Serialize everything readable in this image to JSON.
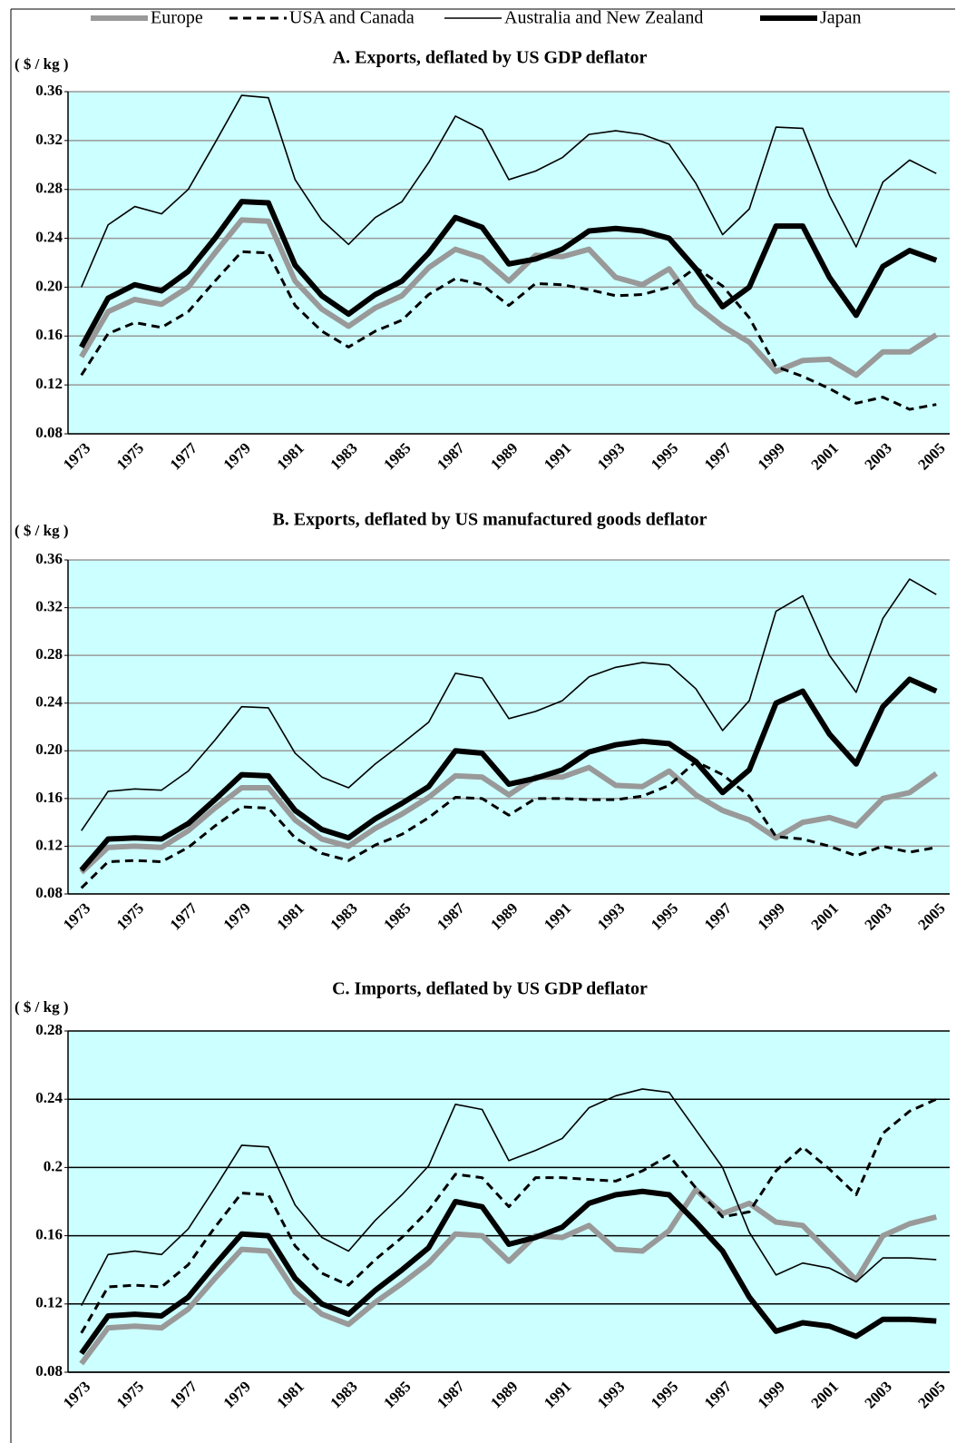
{
  "chart_data": [
    {
      "type": "line",
      "title": "A.  Exports, deflated by US GDP deflator",
      "y_label": "( $ / kg )",
      "categories": [
        "1973",
        null,
        "1975",
        null,
        "1977",
        null,
        "1979",
        null,
        "1981",
        null,
        "1983",
        null,
        "1985",
        null,
        "1987",
        null,
        "1989",
        null,
        "1991",
        null,
        "1993",
        null,
        "1995",
        null,
        "1997",
        null,
        "1999",
        null,
        "2001",
        null,
        "2003",
        null,
        "2005"
      ],
      "ylim": [
        0.08,
        0.36
      ],
      "yticks": [
        0.08,
        0.12,
        0.16,
        {
          "value": 0.2,
          "label": "0.20"
        },
        0.24,
        0.28,
        0.32,
        0.36
      ],
      "grid": true,
      "grid_color": "#999999",
      "plot_background": "#ccffff",
      "series": [
        {
          "name": "Europe",
          "color": "#999999",
          "style": "thick",
          "values": [
            0.143,
            0.18,
            0.19,
            0.186,
            0.2,
            0.228,
            0.255,
            0.254,
            0.205,
            0.182,
            0.168,
            0.183,
            0.193,
            0.216,
            0.231,
            0.224,
            0.205,
            0.226,
            0.225,
            0.231,
            0.208,
            0.202,
            0.215,
            0.185,
            0.168,
            0.155,
            0.131,
            0.14,
            0.141,
            0.128,
            0.147,
            0.147,
            0.161
          ]
        },
        {
          "name": "USA and Canada",
          "color": "#000000",
          "style": "dashed",
          "values": [
            0.128,
            0.162,
            0.171,
            0.167,
            0.18,
            0.205,
            0.229,
            0.228,
            0.185,
            0.164,
            0.151,
            0.164,
            0.173,
            0.194,
            0.207,
            0.202,
            0.185,
            0.203,
            0.202,
            0.198,
            0.193,
            0.194,
            0.2,
            0.216,
            0.201,
            0.175,
            0.135,
            0.127,
            0.117,
            0.105,
            0.11,
            0.1,
            0.104
          ]
        },
        {
          "name": "Australia and New Zealand",
          "color": "#000000",
          "style": "thin",
          "values": [
            0.2,
            0.251,
            0.266,
            0.26,
            0.28,
            0.318,
            0.357,
            0.355,
            0.288,
            0.255,
            0.235,
            0.257,
            0.27,
            0.302,
            0.34,
            0.329,
            0.288,
            0.295,
            0.306,
            0.325,
            0.328,
            0.325,
            0.317,
            0.285,
            0.243,
            0.264,
            0.331,
            0.33,
            0.275,
            0.233,
            0.286,
            0.304,
            0.293
          ]
        },
        {
          "name": "Japan",
          "color": "#000000",
          "style": "thick",
          "values": [
            0.151,
            0.191,
            0.202,
            0.197,
            0.213,
            0.24,
            0.27,
            0.269,
            0.218,
            0.193,
            0.178,
            0.194,
            0.205,
            0.228,
            0.257,
            0.249,
            0.219,
            0.223,
            0.231,
            0.246,
            0.248,
            0.246,
            0.24,
            0.215,
            0.184,
            0.2,
            0.25,
            0.25,
            0.208,
            0.177,
            0.217,
            0.23,
            0.222
          ]
        }
      ]
    },
    {
      "type": "line",
      "title": "B. Exports, deflated by US manufactured goods deflator",
      "y_label": "( $ / kg )",
      "categories": [
        "1973",
        null,
        "1975",
        null,
        "1977",
        null,
        "1979",
        null,
        "1981",
        null,
        "1983",
        null,
        "1985",
        null,
        "1987",
        null,
        "1989",
        null,
        "1991",
        null,
        "1993",
        null,
        "1995",
        null,
        "1997",
        null,
        "1999",
        null,
        "2001",
        null,
        "2003",
        null,
        "2005"
      ],
      "ylim": [
        0.08,
        0.36
      ],
      "yticks": [
        0.08,
        0.12,
        0.16,
        {
          "value": 0.2,
          "label": "0.20"
        },
        0.24,
        0.28,
        0.32,
        0.36
      ],
      "grid": true,
      "grid_color": "#999999",
      "plot_background": "#ccffff",
      "series": [
        {
          "name": "Europe",
          "color": "#999999",
          "style": "thick",
          "values": [
            0.098,
            0.119,
            0.12,
            0.119,
            0.133,
            0.152,
            0.169,
            0.169,
            0.142,
            0.126,
            0.12,
            0.135,
            0.147,
            0.161,
            0.179,
            0.178,
            0.163,
            0.178,
            0.178,
            0.186,
            0.171,
            0.17,
            0.183,
            0.163,
            0.15,
            0.142,
            0.127,
            0.14,
            0.144,
            0.137,
            0.16,
            0.165,
            0.181
          ]
        },
        {
          "name": "USA and Canada",
          "color": "#000000",
          "style": "dashed",
          "values": [
            0.085,
            0.107,
            0.108,
            0.107,
            0.119,
            0.137,
            0.153,
            0.152,
            0.127,
            0.114,
            0.108,
            0.121,
            0.13,
            0.144,
            0.161,
            0.16,
            0.146,
            0.16,
            0.16,
            0.159,
            0.159,
            0.162,
            0.171,
            0.191,
            0.18,
            0.162,
            0.128,
            0.126,
            0.12,
            0.112,
            0.12,
            0.115,
            0.119
          ]
        },
        {
          "name": "Australia and New Zealand",
          "color": "#000000",
          "style": "thin",
          "values": [
            0.133,
            0.166,
            0.168,
            0.167,
            0.183,
            0.209,
            0.237,
            0.236,
            0.198,
            0.178,
            0.169,
            0.189,
            0.206,
            0.224,
            0.265,
            0.261,
            0.227,
            0.233,
            0.242,
            0.262,
            0.27,
            0.274,
            0.272,
            0.252,
            0.217,
            0.242,
            0.317,
            0.33,
            0.28,
            0.249,
            0.311,
            0.344,
            0.331
          ]
        },
        {
          "name": "Japan",
          "color": "#000000",
          "style": "thick",
          "values": [
            0.1,
            0.126,
            0.127,
            0.126,
            0.139,
            0.159,
            0.18,
            0.179,
            0.15,
            0.134,
            0.127,
            0.143,
            0.156,
            0.17,
            0.2,
            0.198,
            0.172,
            0.177,
            0.184,
            0.199,
            0.205,
            0.208,
            0.206,
            0.191,
            0.165,
            0.184,
            0.24,
            0.25,
            0.214,
            0.189,
            0.237,
            0.26,
            0.25
          ]
        }
      ]
    },
    {
      "type": "line",
      "title": "C. Imports, deflated by US GDP deflator",
      "y_label": "( $ / kg )",
      "categories": [
        "1973",
        null,
        "1975",
        null,
        "1977",
        null,
        "1979",
        null,
        "1981",
        null,
        "1983",
        null,
        "1985",
        null,
        "1987",
        null,
        "1989",
        null,
        "1991",
        null,
        "1993",
        null,
        "1995",
        null,
        "1997",
        null,
        "1999",
        null,
        "2001",
        null,
        "2003",
        null,
        "2005"
      ],
      "ylim": [
        0.08,
        0.28
      ],
      "yticks": [
        0.08,
        0.12,
        0.16,
        0.2,
        0.24,
        0.28
      ],
      "grid": true,
      "grid_color": "#000000",
      "plot_background": "#ccffff",
      "series": [
        {
          "name": "Europe",
          "color": "#999999",
          "style": "thick",
          "values": [
            0.085,
            0.106,
            0.107,
            0.106,
            0.117,
            0.135,
            0.152,
            0.151,
            0.127,
            0.114,
            0.108,
            0.121,
            0.132,
            0.144,
            0.161,
            0.16,
            0.145,
            0.16,
            0.159,
            0.166,
            0.152,
            0.151,
            0.163,
            0.187,
            0.173,
            0.179,
            0.168,
            0.166,
            0.15,
            0.134,
            0.16,
            0.167,
            0.171
          ]
        },
        {
          "name": "USA and Canada",
          "color": "#000000",
          "style": "dashed",
          "values": [
            0.103,
            0.13,
            0.131,
            0.13,
            0.143,
            0.165,
            0.185,
            0.184,
            0.154,
            0.138,
            0.131,
            0.146,
            0.159,
            0.175,
            0.196,
            0.194,
            0.177,
            0.194,
            0.194,
            0.193,
            0.192,
            0.198,
            0.207,
            0.188,
            0.171,
            0.174,
            0.198,
            0.212,
            0.199,
            0.184,
            0.22,
            0.233,
            0.24
          ]
        },
        {
          "name": "Australia and New Zealand",
          "color": "#000000",
          "style": "thin",
          "values": [
            0.119,
            0.149,
            0.151,
            0.149,
            0.164,
            0.188,
            0.213,
            0.212,
            0.178,
            0.159,
            0.151,
            0.169,
            0.184,
            0.201,
            0.237,
            0.234,
            0.204,
            0.21,
            0.217,
            0.235,
            0.242,
            0.246,
            0.244,
            0.222,
            0.2,
            0.162,
            0.137,
            0.144,
            0.141,
            0.133,
            0.147,
            0.147,
            0.146
          ]
        },
        {
          "name": "Japan",
          "color": "#000000",
          "style": "thick",
          "values": [
            0.091,
            0.113,
            0.114,
            0.113,
            0.124,
            0.143,
            0.161,
            0.16,
            0.135,
            0.12,
            0.114,
            0.128,
            0.14,
            0.153,
            0.18,
            0.177,
            0.155,
            0.159,
            0.165,
            0.179,
            0.184,
            0.186,
            0.184,
            0.168,
            0.151,
            0.124,
            0.104,
            0.109,
            0.107,
            0.101,
            0.111,
            0.111,
            0.11
          ]
        }
      ]
    }
  ]
}
